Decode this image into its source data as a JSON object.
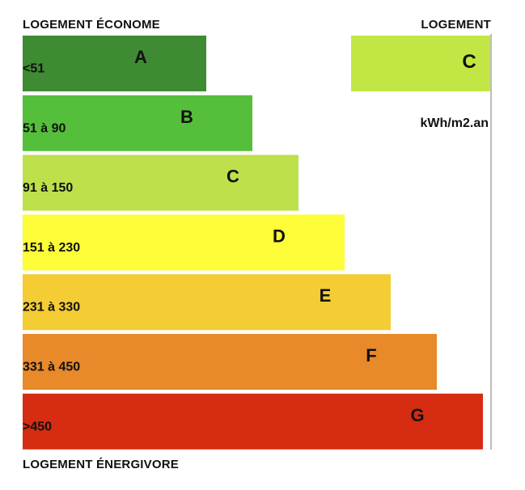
{
  "labels": {
    "top_left": "LOGEMENT ÉCONOME",
    "top_right": "LOGEMENT",
    "bottom_left": "LOGEMENT ÉNERGIVORE",
    "unit": "kWh/m2.an"
  },
  "rating": {
    "letter": "C",
    "color": "#c2e643"
  },
  "chart_data": {
    "type": "bar",
    "orientation": "horizontal",
    "categories": [
      "A",
      "B",
      "C",
      "D",
      "E",
      "F",
      "G"
    ],
    "ranges": [
      "<51",
      "51 à 90",
      "91 à 150",
      "151 à 230",
      "231 à 330",
      "331 à 450",
      ">450"
    ],
    "colors": [
      "#3f8b33",
      "#55bf3b",
      "#bde04b",
      "#fcfc38",
      "#f4cc33",
      "#e8892a",
      "#d52c12"
    ],
    "values": [
      1,
      2,
      3,
      4,
      5,
      6,
      7
    ],
    "title": "",
    "xlabel": "",
    "ylabel": "kWh/m2.an",
    "current_class": "C"
  }
}
